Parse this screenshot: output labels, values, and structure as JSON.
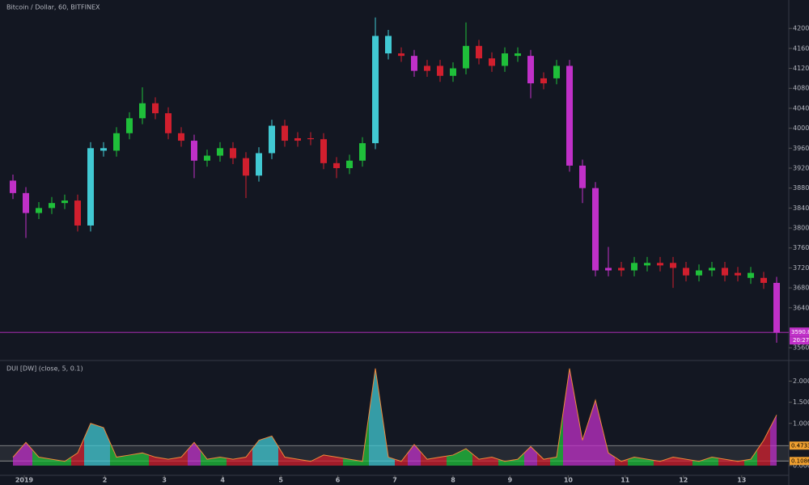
{
  "chart_data": [
    {
      "type": "candlestick",
      "title": "Bitcoin / Dollar, 60, BITFINEX",
      "open": [
        3895,
        3870,
        3830,
        3840,
        3850,
        3855,
        3805,
        3960,
        3955,
        3990,
        4020,
        4050,
        4030,
        3990,
        3975,
        3935,
        3945,
        3960,
        3940,
        3905,
        3950,
        4005,
        3975,
        3980,
        3978,
        3930,
        3920,
        3935,
        3970,
        4185,
        4150,
        4145,
        4115,
        4125,
        4105,
        4120,
        4165,
        4140,
        4125,
        4150,
        4145,
        4090,
        4100,
        4125,
        3925,
        3880,
        3715,
        3720,
        3715,
        3730,
        3725,
        3730,
        3720,
        3705,
        3715,
        3720,
        3705,
        3710,
        3700,
        3690
      ],
      "high": [
        3907,
        3882,
        3852,
        3862,
        3867,
        3867,
        3972,
        3972,
        4002,
        4032,
        4082,
        4062,
        4042,
        4002,
        3987,
        3957,
        3972,
        3972,
        3952,
        3962,
        4017,
        4017,
        3992,
        3992,
        3990,
        3942,
        3947,
        3982,
        4222,
        4197,
        4162,
        4157,
        4137,
        4137,
        4132,
        4212,
        4177,
        4152,
        4162,
        4162,
        4157,
        4112,
        4137,
        4137,
        3937,
        3892,
        3762,
        3732,
        3742,
        3742,
        3742,
        3742,
        3732,
        3727,
        3732,
        3732,
        3722,
        3722,
        3712,
        3702
      ],
      "low": [
        3858,
        3780,
        3818,
        3828,
        3838,
        3793,
        3793,
        3943,
        3943,
        3978,
        4008,
        4018,
        3978,
        3963,
        3900,
        3923,
        3933,
        3928,
        3860,
        3893,
        3938,
        3963,
        3963,
        3966,
        3918,
        3900,
        3908,
        3923,
        3958,
        4138,
        4133,
        4103,
        4103,
        4093,
        4093,
        4108,
        4128,
        4113,
        4113,
        4133,
        4060,
        4078,
        4088,
        3913,
        3850,
        3703,
        3703,
        3703,
        3703,
        3713,
        3713,
        3680,
        3693,
        3693,
        3703,
        3693,
        3693,
        3688,
        3678,
        3570
      ],
      "close": [
        3870,
        3830,
        3840,
        3850,
        3855,
        3805,
        3960,
        3955,
        3990,
        4020,
        4050,
        4030,
        3990,
        3975,
        3935,
        3945,
        3960,
        3940,
        3905,
        3950,
        4005,
        3975,
        3980,
        3978,
        3930,
        3920,
        3935,
        3970,
        4185,
        4150,
        4145,
        4115,
        4125,
        4105,
        4120,
        4165,
        4140,
        4125,
        4150,
        4145,
        4090,
        4100,
        4125,
        3925,
        3880,
        3715,
        3720,
        3715,
        3730,
        3725,
        3730,
        3720,
        3705,
        3715,
        3720,
        3705,
        3710,
        3700,
        3690,
        3590
      ],
      "colors": [
        "#c030c8",
        "#c030c8",
        "#1fbf3a",
        "#1fbf3a",
        "#1fbf3a",
        "#d11f2e",
        "#41c9d3",
        "#41c9d3",
        "#1fbf3a",
        "#1fbf3a",
        "#1fbf3a",
        "#d11f2e",
        "#d11f2e",
        "#d11f2e",
        "#c030c8",
        "#1fbf3a",
        "#1fbf3a",
        "#d11f2e",
        "#d11f2e",
        "#41c9d3",
        "#41c9d3",
        "#d11f2e",
        "#d11f2e",
        "#d11f2e",
        "#d11f2e",
        "#d11f2e",
        "#1fbf3a",
        "#1fbf3a",
        "#41c9d3",
        "#41c9d3",
        "#d11f2e",
        "#c030c8",
        "#d11f2e",
        "#d11f2e",
        "#1fbf3a",
        "#1fbf3a",
        "#d11f2e",
        "#d11f2e",
        "#1fbf3a",
        "#1fbf3a",
        "#c030c8",
        "#d11f2e",
        "#1fbf3a",
        "#c030c8",
        "#c030c8",
        "#c030c8",
        "#c030c8",
        "#d11f2e",
        "#1fbf3a",
        "#1fbf3a",
        "#d11f2e",
        "#d11f2e",
        "#d11f2e",
        "#1fbf3a",
        "#1fbf3a",
        "#d11f2e",
        "#d11f2e",
        "#1fbf3a",
        "#d11f2e",
        "#c030c8"
      ],
      "xlim": [
        -1,
        60
      ],
      "ylim": [
        3536,
        4257
      ],
      "yticks": [
        {
          "value": 4200,
          "label": "4200.0"
        },
        {
          "value": 4160,
          "label": "4160.0"
        },
        {
          "value": 4120,
          "label": "4120.0"
        },
        {
          "value": 4080,
          "label": "4080.0"
        },
        {
          "value": 4040,
          "label": "4040.0"
        },
        {
          "value": 4000,
          "label": "4000.0"
        },
        {
          "value": 3960,
          "label": "3960.0"
        },
        {
          "value": 3920,
          "label": "3920.0"
        },
        {
          "value": 3880,
          "label": "3880.0"
        },
        {
          "value": 3840,
          "label": "3840.0"
        },
        {
          "value": 3800,
          "label": "3800.0"
        },
        {
          "value": 3760,
          "label": "3760.0"
        },
        {
          "value": 3720,
          "label": "3720.0"
        },
        {
          "value": 3680,
          "label": "3680.0"
        },
        {
          "value": 3640,
          "label": "3640.0"
        },
        {
          "value": 3560,
          "label": "3560.0"
        }
      ],
      "xticks": [
        {
          "value": 0.875,
          "label": "2019"
        },
        {
          "value": 7.1,
          "label": "2"
        },
        {
          "value": 11.7,
          "label": "3"
        },
        {
          "value": 16.2,
          "label": "4"
        },
        {
          "value": 20.7,
          "label": "5"
        },
        {
          "value": 25.1,
          "label": "6"
        },
        {
          "value": 29.5,
          "label": "7"
        },
        {
          "value": 34,
          "label": "8"
        },
        {
          "value": 38.4,
          "label": "9"
        },
        {
          "value": 42.9,
          "label": "10"
        },
        {
          "value": 47.3,
          "label": "11"
        },
        {
          "value": 51.8,
          "label": "12"
        },
        {
          "value": 56.3,
          "label": "13"
        }
      ],
      "last_price": 3590.8,
      "countdown": "20:27",
      "price_line_color": "#c030c8"
    },
    {
      "type": "area",
      "title": "DUI [DW] (close, 5, 0.1)",
      "values": [
        0.2,
        0.55,
        0.2,
        0.15,
        0.1,
        0.3,
        1.0,
        0.9,
        0.2,
        0.25,
        0.3,
        0.2,
        0.15,
        0.2,
        0.55,
        0.15,
        0.2,
        0.15,
        0.2,
        0.6,
        0.7,
        0.2,
        0.15,
        0.1,
        0.25,
        0.2,
        0.15,
        0.1,
        2.3,
        0.2,
        0.1,
        0.5,
        0.15,
        0.2,
        0.25,
        0.4,
        0.15,
        0.2,
        0.1,
        0.15,
        0.45,
        0.15,
        0.2,
        2.3,
        0.6,
        1.55,
        0.3,
        0.1,
        0.2,
        0.15,
        0.1,
        0.2,
        0.15,
        0.1,
        0.2,
        0.15,
        0.1,
        0.15,
        0.6,
        1.2
      ],
      "line_color": "#f0883a",
      "ylim": [
        -0.23,
        2.47
      ],
      "yticks": [
        {
          "value": 2,
          "label": "2.0000"
        },
        {
          "value": 1.5,
          "label": "1.5000"
        },
        {
          "value": 1,
          "label": "1.0000"
        },
        {
          "value": 0,
          "label": "0.0000"
        }
      ],
      "levels": [
        0.4733,
        0.1086
      ]
    }
  ]
}
